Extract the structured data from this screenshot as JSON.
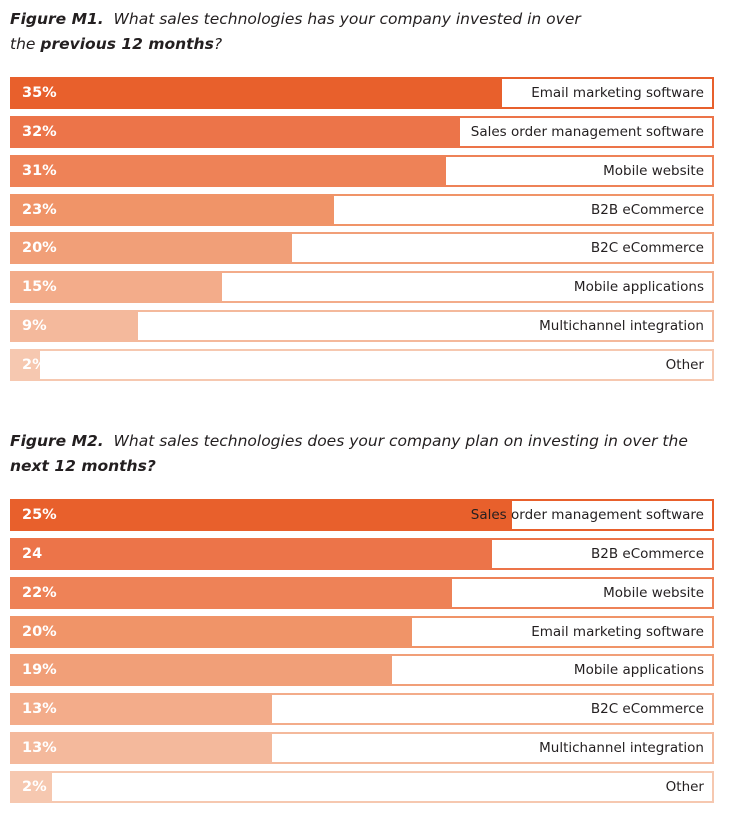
{
  "figures": [
    {
      "caption_prefix": "Figure M1.",
      "caption_text_1": "What sales technologies has your company invested in over",
      "caption_text_2": "the ",
      "caption_bold": "previous 12 months",
      "caption_end": "?"
    },
    {
      "caption_prefix": "Figure M2.",
      "caption_text_1": "What sales technologies does your company plan on investing in over the ",
      "caption_bold": "next 12 months?"
    }
  ],
  "colors": [
    "#e8602c",
    "#ec7449",
    "#ee8257",
    "#f09468",
    "#f19f78",
    "#f3ac8a",
    "#f4b99c",
    "#f6c8b0"
  ],
  "chart_data": [
    {
      "type": "bar",
      "orientation": "horizontal",
      "title": "Figure M1. What sales technologies has your company invested in over the previous 12 months?",
      "xlim": [
        0,
        50
      ],
      "categories": [
        "Email marketing software",
        "Sales order management software",
        "Mobile website",
        "B2B eCommerce",
        "B2C eCommerce",
        "Mobile applications",
        "Multichannel integration",
        "Other"
      ],
      "values": [
        35,
        32,
        31,
        23,
        20,
        15,
        9,
        2
      ],
      "value_labels": [
        "35%",
        "32%",
        "31%",
        "23%",
        "20%",
        "15%",
        "9%",
        "2%"
      ]
    },
    {
      "type": "bar",
      "orientation": "horizontal",
      "title": "Figure M2. What sales technologies does your company plan on investing in over the next 12 months?",
      "xlim": [
        0,
        35
      ],
      "categories": [
        "Sales order management software",
        "B2B eCommerce",
        "Mobile website",
        "Email marketing software",
        "Mobile applications",
        "B2C eCommerce",
        "Multichannel integration",
        "Other"
      ],
      "values": [
        25,
        24,
        22,
        20,
        19,
        13,
        13,
        2
      ],
      "value_labels": [
        "25%",
        "24",
        "22%",
        "20%",
        "19%",
        "13%",
        "13%",
        "2%"
      ]
    }
  ]
}
